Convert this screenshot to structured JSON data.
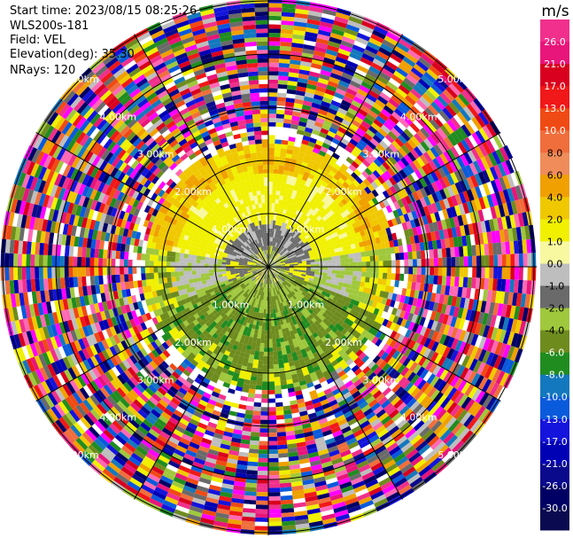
{
  "header": {
    "start_time_label": "Start time:",
    "start_time_value": "2023/08/15 08:25:26",
    "instrument": "WLS200s-181",
    "field_label": "Field:",
    "field_value": "VEL",
    "elevation_label": "Elevation(deg):",
    "elevation_value": "35.30",
    "nrays_label": "NRays:",
    "nrays_value": "120"
  },
  "chart_data": {
    "type": "heatmap",
    "projection": "polar-ppi",
    "field": "VEL",
    "units": "m/s",
    "n_rays": 120,
    "range_rings_km": [
      1.0,
      2.0,
      3.0,
      4.0,
      5.0
    ],
    "ring_labels": [
      "1.00km",
      "2.00km",
      "3.00km",
      "4.00km",
      "5.00km"
    ],
    "spokes_deg": [
      0,
      30,
      60,
      90,
      120,
      150,
      180,
      210,
      240,
      270,
      300,
      330
    ],
    "colorbar": {
      "title": "m/s",
      "ticks": [
        "26.0",
        "21.0",
        "17.0",
        "13.0",
        "10.0",
        "8.0",
        "6.0",
        "4.0",
        "2.0",
        "1.0",
        "0.0",
        "-1.0",
        "-2.0",
        "-4.0",
        "-6.0",
        "-8.0",
        "-10.0",
        "-13.0",
        "-17.0",
        "-21.0",
        "-26.0",
        "-30.0"
      ],
      "colors": [
        "#f0308c",
        "#e8157a",
        "#d8001e",
        "#f01818",
        "#f04a14",
        "#f06e3c",
        "#f08c5a",
        "#f0a000",
        "#f0c800",
        "#f0f000",
        "#f8f8a0",
        "#bebebe",
        "#6a6a6a",
        "#a0c83c",
        "#6e8c1e",
        "#208c20",
        "#1478be",
        "#0a5adc",
        "#1414dc",
        "#0000b4",
        "#0a0a8c",
        "#000064",
        "#0a0a50"
      ]
    },
    "regions": [
      {
        "range_km": [
          0.0,
          0.6
        ],
        "description": "mixed grey/green/yellow center",
        "dominant": "#bebebe"
      },
      {
        "range_km": [
          0.6,
          1.6
        ],
        "azimuth": "north",
        "dominant": "#f0f000"
      },
      {
        "range_km": [
          0.6,
          1.6
        ],
        "azimuth": "south",
        "dominant": "#6e8c1e"
      },
      {
        "range_km": [
          1.6,
          2.4
        ],
        "azimuth": "north",
        "dominant": "#f0c800"
      },
      {
        "range_km": [
          2.4,
          5.5
        ],
        "description": "noise",
        "dominant": "mixed"
      }
    ]
  }
}
